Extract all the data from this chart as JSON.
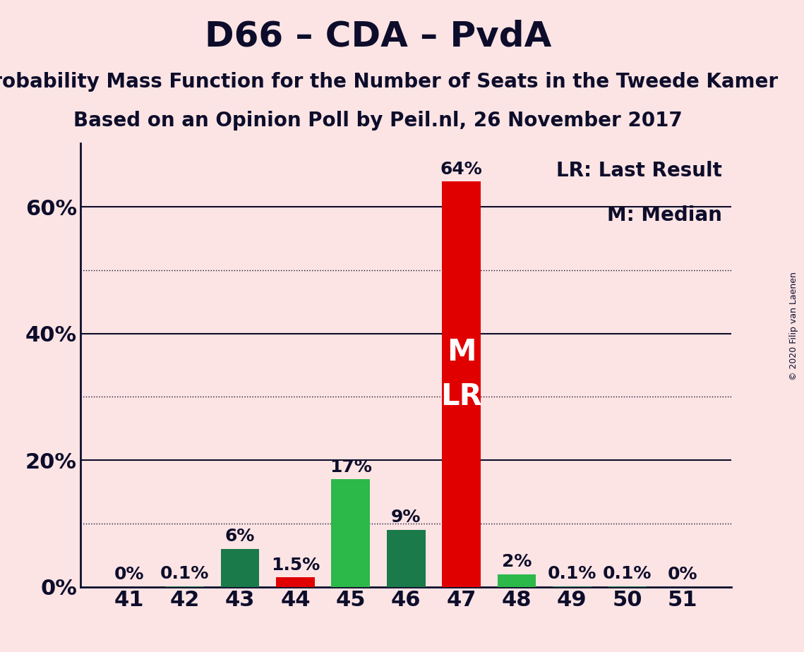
{
  "title": "D66 – CDA – PvdA",
  "subtitle1": "Probability Mass Function for the Number of Seats in the Tweede Kamer",
  "subtitle2": "Based on an Opinion Poll by Peil.nl, 26 November 2017",
  "copyright": "© 2020 Filip van Laenen",
  "categories": [
    41,
    42,
    43,
    44,
    45,
    46,
    47,
    48,
    49,
    50,
    51
  ],
  "values": [
    0.0,
    0.1,
    6.0,
    1.5,
    17.0,
    9.0,
    64.0,
    2.0,
    0.1,
    0.1,
    0.0
  ],
  "colors": [
    "#1a7a4a",
    "#1a7a4a",
    "#1a7a4a",
    "#e00000",
    "#2db84a",
    "#1a7a4a",
    "#e00000",
    "#2db84a",
    "#1a7a4a",
    "#1a7a4a",
    "#1a7a4a"
  ],
  "bar_labels": [
    "0%",
    "0.1%",
    "6%",
    "1.5%",
    "17%",
    "9%",
    "64%",
    "2%",
    "0.1%",
    "0.1%",
    "0%"
  ],
  "median_bar": 47,
  "lr_bar": 47,
  "lr_label": "LR",
  "m_label": "M",
  "legend_lr": "LR: Last Result",
  "legend_m": "M: Median",
  "ylim": [
    0,
    70
  ],
  "solid_gridlines": [
    20,
    40,
    60
  ],
  "dotted_gridlines": [
    10,
    30,
    50
  ],
  "ytick_positions": [
    0,
    20,
    40,
    60
  ],
  "ytick_labels": [
    "0%",
    "20%",
    "40%",
    "60%"
  ],
  "background_color": "#fce4e4",
  "bar_width": 0.7,
  "title_color": "#0d0d2b",
  "text_color": "#0d0d2b",
  "bar_label_fontsize": 18,
  "title_fontsize": 36,
  "subtitle_fontsize": 20,
  "axis_tick_fontsize": 22,
  "legend_fontsize": 20,
  "m_lr_fontsize": 30,
  "spine_linewidth": 2,
  "solid_linewidth": 1.5,
  "dotted_linewidth": 1.0
}
